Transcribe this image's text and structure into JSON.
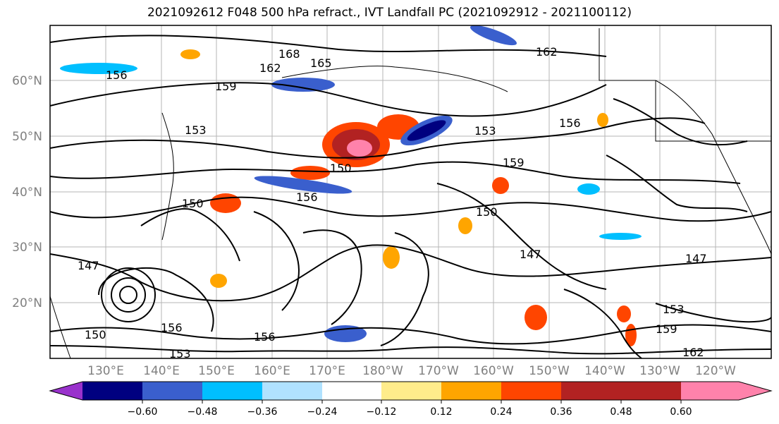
{
  "title": "2021092612 F048 500 hPa refract., IVT Landfall PC (2021092912 - 2021100112)",
  "lat_labels": [
    "60°N",
    "50°N",
    "40°N",
    "30°N",
    "20°N"
  ],
  "lon_labels": [
    "130°E",
    "140°E",
    "150°E",
    "160°E",
    "170°E",
    "180°W",
    "170°W",
    "160°W",
    "150°W",
    "140°W",
    "130°W",
    "120°W"
  ],
  "colorbar": {
    "colors": [
      "#9932cc",
      "#000080",
      "#3a5fcd",
      "#00bfff",
      "#b0e2ff",
      "#ffffff",
      "#ffec8b",
      "#ffa500",
      "#ff4500",
      "#b22222",
      "#ff82ab"
    ],
    "tick_labels": [
      "−0.60",
      "−0.48",
      "−0.36",
      "−0.24",
      "−0.12",
      "0.12",
      "0.24",
      "0.36",
      "0.48",
      "0.60"
    ]
  },
  "contour_labels": [
    "168",
    "162",
    "165",
    "159",
    "156",
    "153",
    "150",
    "147",
    "162",
    "156",
    "153",
    "159",
    "150",
    "147",
    "156",
    "153",
    "162",
    "159",
    "156",
    "150",
    "147",
    "156",
    "153",
    "150"
  ]
}
